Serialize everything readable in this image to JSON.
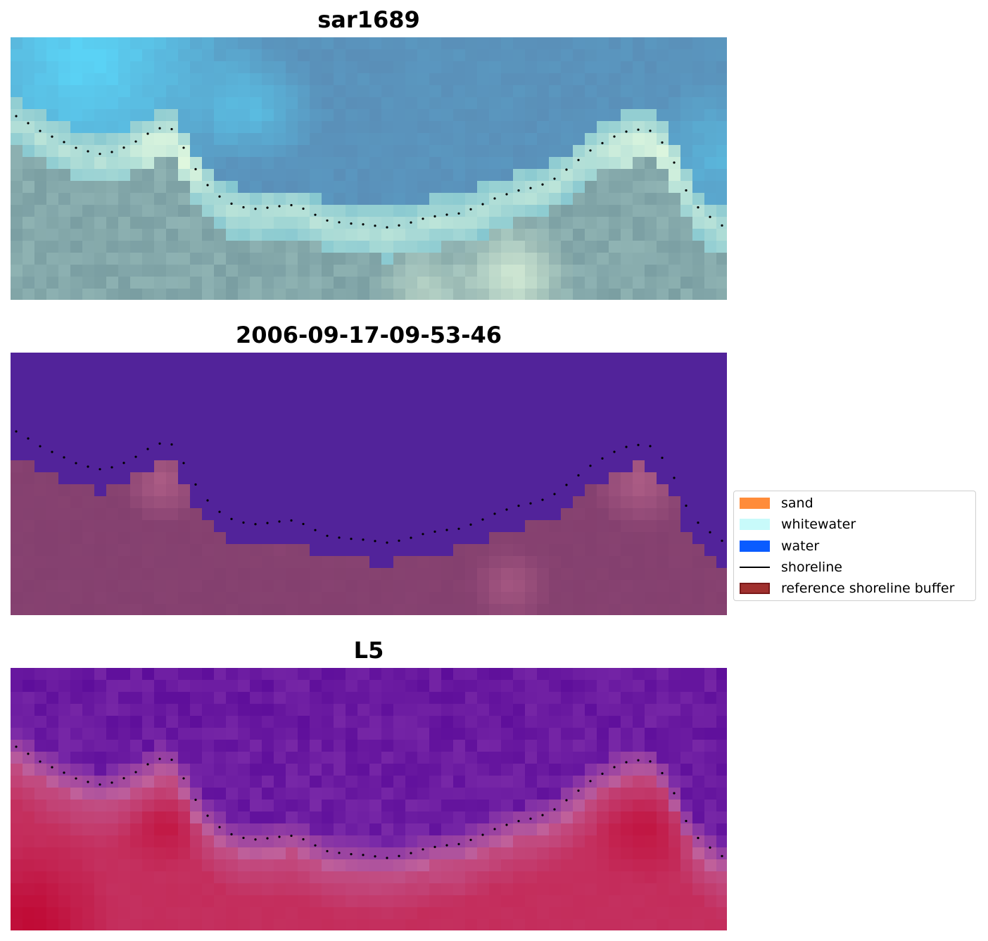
{
  "panels": [
    {
      "title": "sar1689",
      "style": "rgb",
      "colors": {
        "water_dark": "#5a8fb8",
        "water_cyan": "#5ad2f5",
        "surf": "#e8fce0",
        "beach": "#7a9ea2",
        "beach_light": "#8fb3b3"
      }
    },
    {
      "title": "2006-09-17-09-53-46",
      "style": "classified",
      "colors": {
        "water": "#52239a",
        "land": "#84406f",
        "land_light": "#b4628a"
      }
    },
    {
      "title": "L5",
      "style": "index",
      "colors": {
        "water": "#5d0d9a",
        "water_light": "#7a2aa8",
        "transition": "#c0609a",
        "land": "#c4305f",
        "land_dark": "#c00a35"
      }
    }
  ],
  "legend": {
    "items": [
      {
        "label": "sand",
        "kind": "patch",
        "color": "#ff8c3a"
      },
      {
        "label": "whitewater",
        "kind": "patch",
        "color": "#c8fafa"
      },
      {
        "label": "water",
        "kind": "patch",
        "color": "#0a5cff"
      },
      {
        "label": "shoreline",
        "kind": "line",
        "color": "#000000"
      },
      {
        "label": "reference shoreline buffer",
        "kind": "patch",
        "color": "#a0302e",
        "edge": "#7a1a1a"
      }
    ]
  }
}
